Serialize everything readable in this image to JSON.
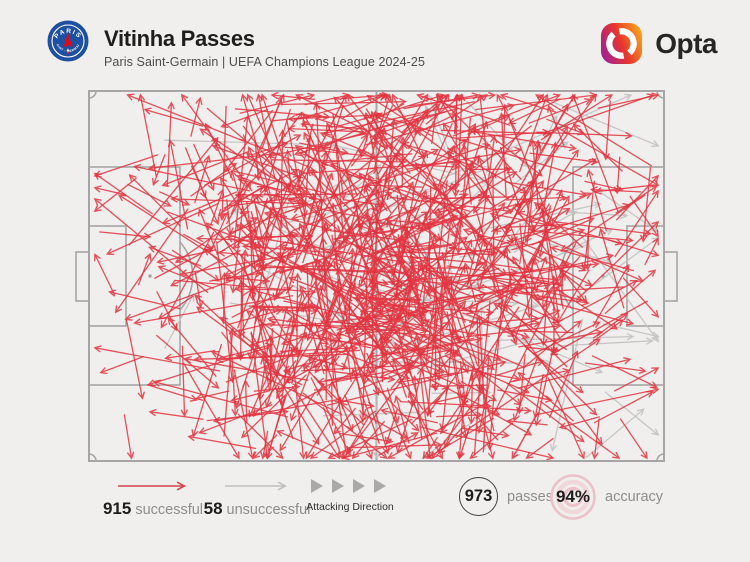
{
  "header": {
    "title": "Vitinha Passes",
    "subtitle": "Paris Saint-Germain | UEFA Champions League 2024-25",
    "club_badge": {
      "name": "Paris Saint-Germain crest",
      "top_text": "PARIS",
      "bottom_text": "SAINT - GERMAIN"
    },
    "brand_word": "Opta"
  },
  "legend": {
    "successful": {
      "value": "915",
      "label": "successful"
    },
    "unsuccessful": {
      "value": "58",
      "label": "unsuccessful"
    },
    "attacking_direction_label": "Attacking Direction",
    "passes": {
      "value": "973",
      "label": "passes"
    },
    "accuracy": {
      "value": "94%",
      "label": "accuracy"
    }
  },
  "colors": {
    "background": "#f0efed",
    "pitch_line": "#a5a5a5",
    "successful_red": "#e23440",
    "legend_red": "#d4454e",
    "unsuccessful_gray": "#c2c2c2",
    "legend_gray": "#bfbfbf",
    "triangle_gray": "#a9a9a9",
    "ink": "#1d1d1b",
    "muted": "#8d8d8d",
    "target_pink": "#eac3c9",
    "psg_blue": "#1f4fa0",
    "psg_red": "#e30613",
    "opta_gradient": [
      "#a32092",
      "#e8352c",
      "#f7a01b"
    ]
  },
  "chart_data": {
    "type": "scatter",
    "subtype": "pass-map",
    "title": "Vitinha Passes",
    "team": "Paris Saint-Germain",
    "competition": "UEFA Champions League 2024-25",
    "pitch": "full pitch, landscape, attacking left-to-right",
    "attacking_direction": "left-to-right",
    "series": [
      {
        "name": "successful",
        "count": 915,
        "color": "#e23440"
      },
      {
        "name": "unsuccessful",
        "count": 58,
        "color": "#c2c2c2"
      }
    ],
    "totals": {
      "passes": 973,
      "accuracy": "94%"
    },
    "notes": "915 successful passes drawn as red arrows, 58 unsuccessful as gray arrows, densest through central corridor of the pitch"
  }
}
